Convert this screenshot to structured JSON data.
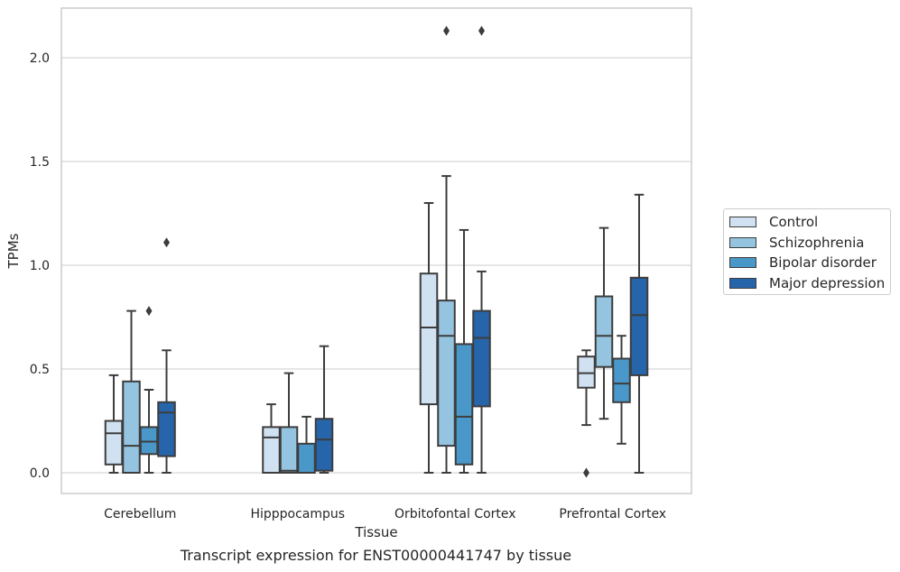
{
  "chart_data": {
    "type": "box",
    "caption": "Transcript expression for ENST00000441747 by tissue",
    "xlabel": "Tissue",
    "ylabel": "TPMs",
    "ylim": [
      -0.1,
      2.25
    ],
    "yticks": [
      "0.0",
      "0.5",
      "1.0",
      "1.5",
      "2.0"
    ],
    "ytick_values": [
      0,
      0.5,
      1.0,
      1.5,
      2.0
    ],
    "categories": [
      "Cerebellum",
      "Hipppocampus",
      "Orbitofontal Cortex",
      "Prefrontal Cortex"
    ],
    "grid": "horizontal",
    "legend_position": "outside-right",
    "series": [
      {
        "name": "Control",
        "color": "#d0e1f2",
        "boxes": [
          {
            "whisker_low": 0.0,
            "q1": 0.04,
            "median": 0.19,
            "q3": 0.25,
            "whisker_high": 0.47,
            "outliers": []
          },
          {
            "whisker_low": 0.0,
            "q1": 0.0,
            "median": 0.17,
            "q3": 0.22,
            "whisker_high": 0.33,
            "outliers": []
          },
          {
            "whisker_low": 0.0,
            "q1": 0.33,
            "median": 0.7,
            "q3": 0.96,
            "whisker_high": 1.3,
            "outliers": []
          },
          {
            "whisker_low": 0.23,
            "q1": 0.41,
            "median": 0.48,
            "q3": 0.56,
            "whisker_high": 0.59,
            "outliers": [
              0.0
            ]
          }
        ]
      },
      {
        "name": "Schizophrenia",
        "color": "#94c4df",
        "boxes": [
          {
            "whisker_low": 0.0,
            "q1": 0.0,
            "median": 0.13,
            "q3": 0.44,
            "whisker_high": 0.78,
            "outliers": []
          },
          {
            "whisker_low": 0.0,
            "q1": 0.0,
            "median": 0.01,
            "q3": 0.22,
            "whisker_high": 0.48,
            "outliers": []
          },
          {
            "whisker_low": 0.0,
            "q1": 0.13,
            "median": 0.66,
            "q3": 0.83,
            "whisker_high": 1.43,
            "outliers": [
              2.13
            ]
          },
          {
            "whisker_low": 0.26,
            "q1": 0.51,
            "median": 0.66,
            "q3": 0.85,
            "whisker_high": 1.18,
            "outliers": []
          }
        ]
      },
      {
        "name": "Bipolar disorder",
        "color": "#4a98c9",
        "boxes": [
          {
            "whisker_low": 0.0,
            "q1": 0.09,
            "median": 0.15,
            "q3": 0.22,
            "whisker_high": 0.4,
            "outliers": [
              0.78
            ]
          },
          {
            "whisker_low": 0.0,
            "q1": 0.0,
            "median": 0.0,
            "q3": 0.14,
            "whisker_high": 0.27,
            "outliers": []
          },
          {
            "whisker_low": 0.0,
            "q1": 0.04,
            "median": 0.27,
            "q3": 0.62,
            "whisker_high": 1.17,
            "outliers": []
          },
          {
            "whisker_low": 0.14,
            "q1": 0.34,
            "median": 0.43,
            "q3": 0.55,
            "whisker_high": 0.66,
            "outliers": []
          }
        ]
      },
      {
        "name": "Major depression",
        "color": "#2765ab",
        "boxes": [
          {
            "whisker_low": 0.0,
            "q1": 0.08,
            "median": 0.29,
            "q3": 0.34,
            "whisker_high": 0.59,
            "outliers": [
              1.11
            ]
          },
          {
            "whisker_low": 0.0,
            "q1": 0.01,
            "median": 0.16,
            "q3": 0.26,
            "whisker_high": 0.61,
            "outliers": []
          },
          {
            "whisker_low": 0.0,
            "q1": 0.32,
            "median": 0.65,
            "q3": 0.78,
            "whisker_high": 0.97,
            "outliers": [
              2.13
            ]
          },
          {
            "whisker_low": 0.0,
            "q1": 0.47,
            "median": 0.76,
            "q3": 0.94,
            "whisker_high": 1.34,
            "outliers": []
          }
        ]
      }
    ]
  }
}
